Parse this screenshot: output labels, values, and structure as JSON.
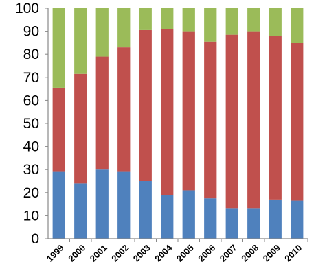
{
  "chart_data": {
    "type": "bar",
    "stacked": true,
    "categories": [
      "1999",
      "2000",
      "2001",
      "2002",
      "2003",
      "2004",
      "2005",
      "2006",
      "2007",
      "2008",
      "2009",
      "2010"
    ],
    "series": [
      {
        "color": "#4F81BD",
        "values": [
          29,
          24,
          30,
          29,
          25,
          19,
          21,
          17.5,
          13,
          13,
          17,
          16.5
        ]
      },
      {
        "color": "#C0504D",
        "values": [
          36.5,
          47.5,
          49,
          54,
          65.5,
          72,
          69,
          68,
          75.5,
          77,
          71,
          68.5
        ]
      },
      {
        "color": "#9BBB59",
        "values": [
          34.5,
          28.5,
          21,
          17,
          9.5,
          9,
          10,
          14.5,
          11.5,
          10,
          12,
          15
        ]
      }
    ],
    "ylim": [
      0,
      100
    ],
    "yticks": [
      0,
      10,
      20,
      30,
      40,
      50,
      60,
      70,
      80,
      90,
      100
    ],
    "grid": false,
    "legend": "none"
  }
}
